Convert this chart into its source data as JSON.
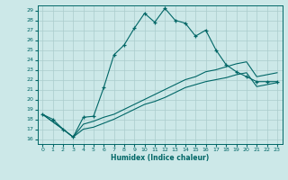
{
  "xlabel": "Humidex (Indice chaleur)",
  "bg_color": "#cce8e8",
  "grid_color": "#aacccc",
  "line_color": "#006666",
  "xlim": [
    -0.5,
    23.5
  ],
  "ylim": [
    15.5,
    29.5
  ],
  "yticks": [
    16,
    17,
    18,
    19,
    20,
    21,
    22,
    23,
    24,
    25,
    26,
    27,
    28,
    29
  ],
  "xticks": [
    0,
    1,
    2,
    3,
    4,
    5,
    6,
    7,
    8,
    9,
    10,
    11,
    12,
    13,
    14,
    15,
    16,
    17,
    18,
    19,
    20,
    21,
    22,
    23
  ],
  "main_line_x": [
    0,
    1,
    2,
    3,
    4,
    5,
    6,
    7,
    8,
    9,
    10,
    11,
    12,
    13,
    14,
    15,
    16,
    17,
    18,
    19,
    20,
    21,
    22,
    23
  ],
  "main_line_y": [
    18.5,
    18.0,
    17.0,
    16.2,
    18.2,
    18.3,
    21.2,
    24.5,
    25.5,
    27.2,
    28.7,
    27.8,
    29.2,
    28.0,
    27.7,
    26.4,
    27.0,
    25.0,
    23.5,
    22.8,
    22.3,
    21.8,
    21.8,
    21.8
  ],
  "line2_x": [
    0,
    2,
    3,
    4,
    5,
    6,
    7,
    8,
    9,
    10,
    11,
    12,
    13,
    14,
    15,
    16,
    17,
    18,
    19,
    20,
    21,
    22,
    23
  ],
  "line2_y": [
    18.5,
    17.0,
    16.2,
    17.5,
    17.8,
    18.2,
    18.5,
    19.0,
    19.5,
    20.0,
    20.5,
    21.0,
    21.5,
    22.0,
    22.3,
    22.8,
    23.0,
    23.3,
    23.6,
    23.8,
    22.3,
    22.5,
    22.7
  ],
  "line3_x": [
    0,
    2,
    3,
    4,
    5,
    6,
    7,
    8,
    9,
    10,
    11,
    12,
    13,
    14,
    15,
    16,
    17,
    18,
    19,
    20,
    21,
    22,
    23
  ],
  "line3_y": [
    18.5,
    17.0,
    16.2,
    17.0,
    17.2,
    17.6,
    18.0,
    18.5,
    19.0,
    19.5,
    19.8,
    20.2,
    20.7,
    21.2,
    21.5,
    21.8,
    22.0,
    22.2,
    22.5,
    22.7,
    21.3,
    21.5,
    21.7
  ]
}
